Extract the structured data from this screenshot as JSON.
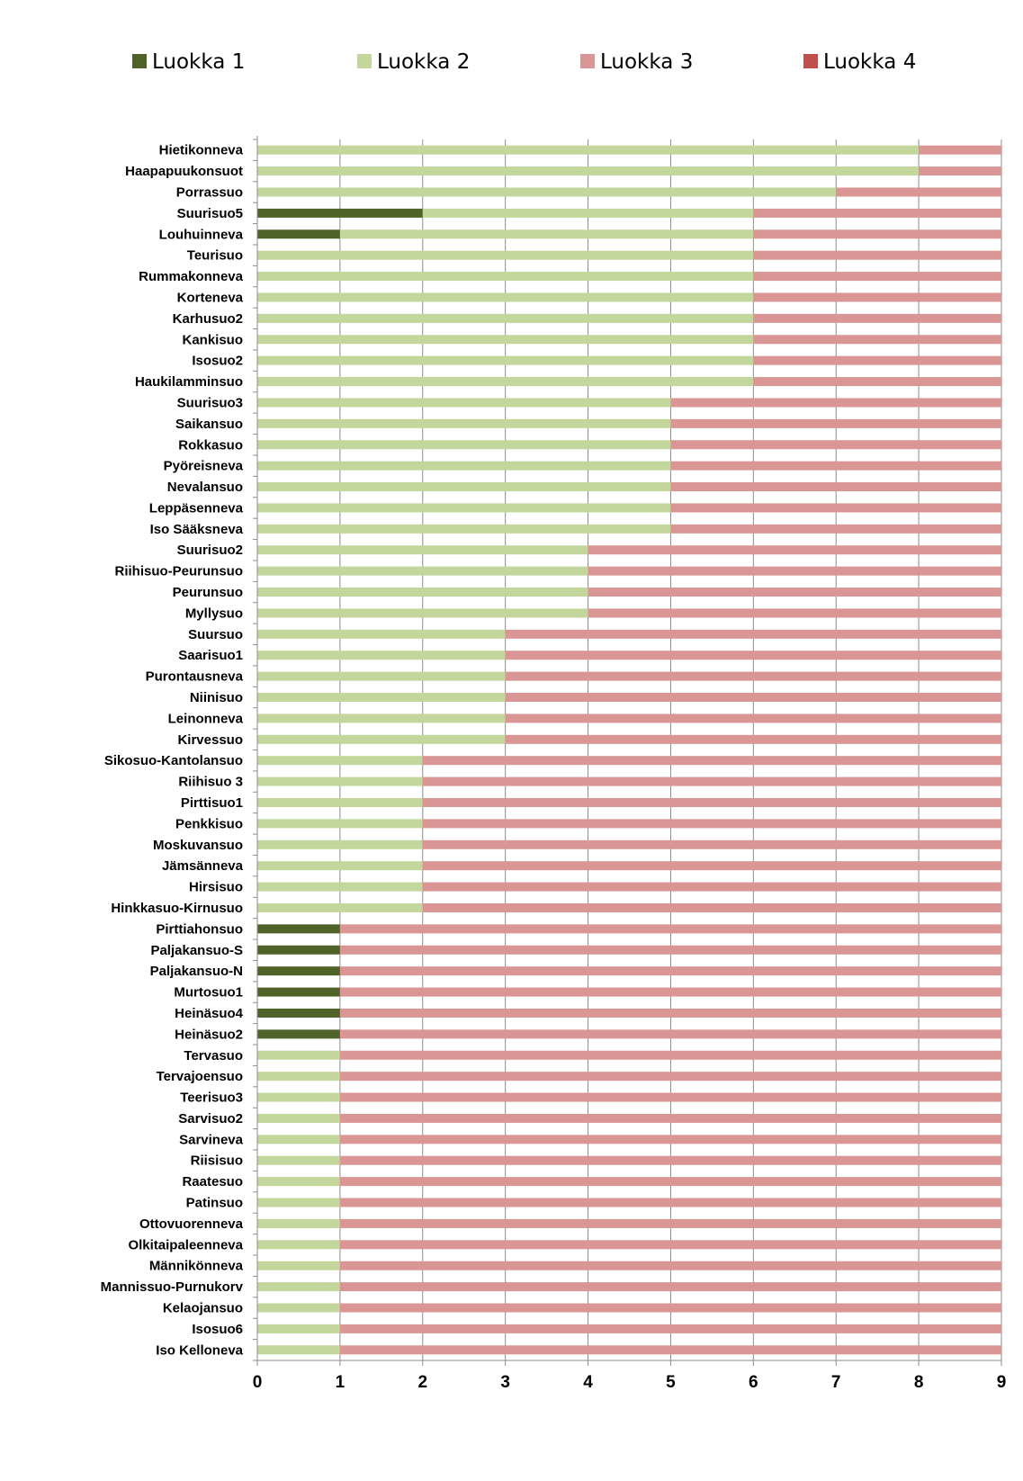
{
  "chart_data": {
    "type": "bar",
    "orientation": "horizontal",
    "stacked": true,
    "grid": true,
    "legend_position": "top",
    "xlim": [
      0,
      9
    ],
    "x_ticks": [
      "0",
      "1",
      "2",
      "3",
      "4",
      "5",
      "6",
      "7",
      "8",
      "9"
    ],
    "categories": [
      "Hietikonneva",
      "Haapapuukonsuot",
      "Porrassuo",
      "Suurisuo5",
      "Louhuinneva",
      "Teurisuo",
      "Rummakonneva",
      "Korteneva",
      "Karhusuo2",
      "Kankisuo",
      "Isosuo2",
      "Haukilamminsuo",
      "Suurisuo3",
      "Saikansuo",
      "Rokkasuo",
      "Pyöreisneva",
      "Nevalansuo",
      "Leppäsenneva",
      "Iso Sääksneva",
      "Suurisuo2",
      "Riihisuo-Peurunsuo",
      "Peurunsuo",
      "Myllysuo",
      "Suursuo",
      "Saarisuo1",
      "Purontausneva",
      "Niinisuo",
      "Leinonneva",
      "Kirvessuo",
      "Sikosuo-Kantolansuo",
      "Riihisuo 3",
      "Pirttisuo1",
      "Penkkisuo",
      "Moskuvansuo",
      "Jämsänneva",
      "Hirsisuo",
      "Hinkkasuo-Kirnusuo",
      "Pirttiahonsuo",
      "Paljakansuo-S",
      "Paljakansuo-N",
      "Murtosuo1",
      "Heinäsuo4",
      "Heinäsuo2",
      "Tervasuo",
      "Tervajoensuo",
      "Teerisuo3",
      "Sarvisuo2",
      "Sarvineva",
      "Riisisuo",
      "Raatesuo",
      "Patinsuo",
      "Ottovuorenneva",
      "Olkitaipaleenneva",
      "Männikönneva",
      "Mannissuo-Purnukorv",
      "Kelaojansuo",
      "Isosuo6",
      "Iso Kelloneva"
    ],
    "series": [
      {
        "name": "Luokka 1",
        "color": "#4f6228",
        "values": [
          0,
          0,
          0,
          2,
          1,
          0,
          0,
          0,
          0,
          0,
          0,
          0,
          0,
          0,
          0,
          0,
          0,
          0,
          0,
          0,
          0,
          0,
          0,
          0,
          0,
          0,
          0,
          0,
          0,
          0,
          0,
          0,
          0,
          0,
          0,
          0,
          0,
          1,
          1,
          1,
          1,
          1,
          1,
          0,
          0,
          0,
          0,
          0,
          0,
          0,
          0,
          0,
          0,
          0,
          0,
          0,
          0,
          0
        ]
      },
      {
        "name": "Luokka 2",
        "color": "#c3d69b",
        "values": [
          8,
          8,
          7,
          4,
          5,
          6,
          6,
          6,
          6,
          6,
          6,
          6,
          5,
          5,
          5,
          5,
          5,
          5,
          5,
          4,
          4,
          4,
          4,
          3,
          3,
          3,
          3,
          3,
          3,
          2,
          2,
          2,
          2,
          2,
          2,
          2,
          2,
          0,
          0,
          0,
          0,
          0,
          0,
          1,
          1,
          1,
          1,
          1,
          1,
          1,
          1,
          1,
          1,
          1,
          1,
          1,
          1,
          1
        ]
      },
      {
        "name": "Luokka 3",
        "color": "#d99694",
        "values": [
          1,
          1,
          2,
          3,
          3,
          3,
          3,
          3,
          3,
          3,
          3,
          3,
          4,
          4,
          4,
          4,
          4,
          4,
          4,
          5,
          5,
          5,
          5,
          6,
          6,
          6,
          6,
          6,
          6,
          7,
          7,
          7,
          7,
          7,
          7,
          7,
          7,
          8,
          8,
          8,
          8,
          8,
          8,
          8,
          8,
          8,
          8,
          8,
          8,
          8,
          8,
          8,
          8,
          8,
          8,
          8,
          8,
          8
        ]
      },
      {
        "name": "Luokka 4",
        "color": "#c0504d",
        "values": [
          0,
          0,
          0,
          0,
          0,
          0,
          0,
          0,
          0,
          0,
          0,
          0,
          0,
          0,
          0,
          0,
          0,
          0,
          0,
          0,
          0,
          0,
          0,
          0,
          0,
          0,
          0,
          0,
          0,
          0,
          0,
          0,
          0,
          0,
          0,
          0,
          0,
          0,
          0,
          0,
          0,
          0,
          0,
          0,
          0,
          0,
          0,
          0,
          0,
          0,
          0,
          0,
          0,
          0,
          0,
          0,
          0,
          0
        ]
      }
    ]
  }
}
